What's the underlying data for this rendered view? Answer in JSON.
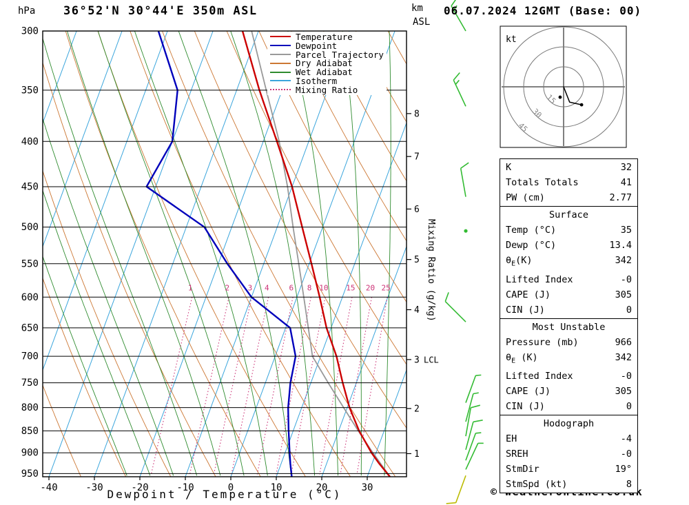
{
  "header": {
    "title": "36°52'N 30°44'E 350m ASL",
    "datetime": "06.07.2024 12GMT (Base: 00)",
    "pressure_unit": "hPa",
    "km_label": "km",
    "asl_label": "ASL"
  },
  "axes": {
    "pressure_ticks": [
      300,
      350,
      400,
      450,
      500,
      550,
      600,
      650,
      700,
      750,
      800,
      850,
      900,
      950
    ],
    "temp_ticks": [
      -40,
      -30,
      -20,
      -10,
      0,
      10,
      20,
      30
    ],
    "x_label": "Dewpoint / Temperature (°C)",
    "mixing_ratio_label": "Mixing Ratio (g/kg)",
    "km_ticks": [
      [
        1,
        902
      ],
      [
        2,
        802
      ],
      [
        3,
        706
      ],
      [
        4,
        620
      ],
      [
        5,
        544
      ],
      [
        6,
        477
      ],
      [
        7,
        416
      ],
      [
        8,
        372
      ]
    ],
    "lcl": {
      "km": 3,
      "label": "LCL"
    }
  },
  "legend": [
    {
      "label": "Temperature",
      "color": "#cc0000",
      "dotted": false
    },
    {
      "label": "Dewpoint",
      "color": "#0000bb",
      "dotted": false
    },
    {
      "label": "Parcel Trajectory",
      "color": "#999999",
      "dotted": false
    },
    {
      "label": "Dry Adiabat",
      "color": "#cc7733",
      "dotted": false
    },
    {
      "label": "Wet Adiabat",
      "color": "#2e8b2e",
      "dotted": false
    },
    {
      "label": "Isotherm",
      "color": "#3aa5dc",
      "dotted": false
    },
    {
      "label": "Mixing Ratio",
      "color": "#cc3377",
      "dotted": true
    }
  ],
  "chart_data": {
    "type": "skewt-log-p-sounding",
    "location": "36°52'N 30°44'E 350m ASL",
    "valid": "06.07.2024 12GMT (Base: 00)",
    "pressure_range_hPa": [
      300,
      958
    ],
    "temp_axis_range_C": [
      -40,
      38
    ],
    "temperature_profile_p_T": [
      [
        958,
        35
      ],
      [
        925,
        31.5
      ],
      [
        900,
        29
      ],
      [
        850,
        24.5
      ],
      [
        800,
        20.5
      ],
      [
        750,
        17
      ],
      [
        700,
        13.5
      ],
      [
        650,
        9
      ],
      [
        600,
        5
      ],
      [
        550,
        0.5
      ],
      [
        500,
        -4.5
      ],
      [
        450,
        -10
      ],
      [
        400,
        -17
      ],
      [
        350,
        -25
      ],
      [
        300,
        -33.5
      ]
    ],
    "dewpoint_profile_p_T": [
      [
        958,
        13.4
      ],
      [
        925,
        12
      ],
      [
        900,
        11
      ],
      [
        850,
        9
      ],
      [
        800,
        7
      ],
      [
        750,
        5.5
      ],
      [
        700,
        4.5
      ],
      [
        650,
        1
      ],
      [
        600,
        -10
      ],
      [
        550,
        -18
      ],
      [
        500,
        -26
      ],
      [
        450,
        -42
      ],
      [
        400,
        -40
      ],
      [
        350,
        -43
      ],
      [
        300,
        -52
      ]
    ],
    "parcel_profile_p_T": [
      [
        958,
        35
      ],
      [
        900,
        29.3
      ],
      [
        850,
        24.3
      ],
      [
        800,
        19.2
      ],
      [
        750,
        13.8
      ],
      [
        700,
        8.2
      ],
      [
        650,
        5
      ],
      [
        600,
        1.5
      ],
      [
        550,
        -2.3
      ],
      [
        500,
        -6.5
      ],
      [
        450,
        -11
      ],
      [
        400,
        -16.5
      ],
      [
        350,
        -23.5
      ],
      [
        300,
        -31.5
      ]
    ],
    "mixing_ratio_lines_gkg": [
      1,
      2,
      3,
      4,
      6,
      8,
      10,
      15,
      20,
      25
    ],
    "isotherms_C": {
      "from": -90,
      "to": 30,
      "step": 10
    },
    "dry_adiabats_C": {
      "from": -40,
      "to": 120,
      "step": 10
    },
    "wet_adiabats_C": {
      "from": -20,
      "to": 35,
      "step": 5
    },
    "winds": [
      {
        "p": 300,
        "spd": 15,
        "dir": 330
      },
      {
        "p": 365,
        "spd": 15,
        "dir": 335
      },
      {
        "p": 462,
        "spd": 10,
        "dir": 350
      },
      {
        "p": 505,
        "spd": 2,
        "dir": 0
      },
      {
        "p": 640,
        "spd": 10,
        "dir": 315
      },
      {
        "p": 790,
        "spd": 5,
        "dir": 20
      },
      {
        "p": 830,
        "spd": 5,
        "dir": 15
      },
      {
        "p": 862,
        "spd": 10,
        "dir": 10
      },
      {
        "p": 893,
        "spd": 10,
        "dir": 15
      },
      {
        "p": 918,
        "spd": 5,
        "dir": 20
      },
      {
        "p": 940,
        "spd": 5,
        "dir": 25
      },
      {
        "p": 955,
        "spd": 10,
        "dir": 200,
        "surface": true
      }
    ]
  },
  "hodograph": {
    "unit": "kt",
    "rings": [
      15,
      30,
      45
    ],
    "trace_kt": [
      [
        0,
        0
      ],
      [
        4.5,
        11.5
      ],
      [
        13.5,
        13.5
      ]
    ],
    "dots_kt": [
      [
        13.5,
        13.5
      ]
    ],
    "storm_dot_kt": [
      -2.6,
      7.8
    ]
  },
  "table": {
    "sections": [
      {
        "rows": [
          {
            "l": "K",
            "v": "32"
          },
          {
            "l": "Totals Totals",
            "v": "41"
          },
          {
            "l": "PW (cm)",
            "v": "2.77"
          }
        ]
      },
      {
        "header": "Surface",
        "rows": [
          {
            "l": "Temp (°C)",
            "v": "35"
          },
          {
            "l": "Dewp (°C)",
            "v": "13.4"
          },
          {
            "l": "θ",
            "sub": "E",
            "post": "(K)",
            "v": "342"
          },
          {
            "l": "Lifted Index",
            "v": "-0"
          },
          {
            "l": "CAPE (J)",
            "v": "305"
          },
          {
            "l": "CIN (J)",
            "v": "0"
          }
        ]
      },
      {
        "header": "Most Unstable",
        "rows": [
          {
            "l": "Pressure (mb)",
            "v": "966"
          },
          {
            "l": "θ",
            "sub": "E",
            "post": " (K)",
            "v": "342"
          },
          {
            "l": "Lifted Index",
            "v": "-0"
          },
          {
            "l": "CAPE (J)",
            "v": "305"
          },
          {
            "l": "CIN (J)",
            "v": "0"
          }
        ]
      },
      {
        "header": "Hodograph",
        "rows": [
          {
            "l": "EH",
            "v": "-4"
          },
          {
            "l": "SREH",
            "v": "-0"
          },
          {
            "l": "StmDir",
            "v": "19°"
          },
          {
            "l": "StmSpd (kt)",
            "v": "8"
          }
        ]
      }
    ]
  },
  "footer": {
    "copyright": "© weatheronline.co.uk"
  },
  "colors": {
    "temperature": "#cc0000",
    "dewpoint": "#0000bb",
    "parcel": "#999999",
    "dry_adiabat": "#cc7733",
    "wet_adiabat": "#2e8b2e",
    "isotherm": "#3aa5dc",
    "mixing_ratio": "#cc3377",
    "wind": "#33bb33",
    "wind_surface": "#bbbb00",
    "grid": "#000000",
    "hodograph_ring": "#777777"
  }
}
